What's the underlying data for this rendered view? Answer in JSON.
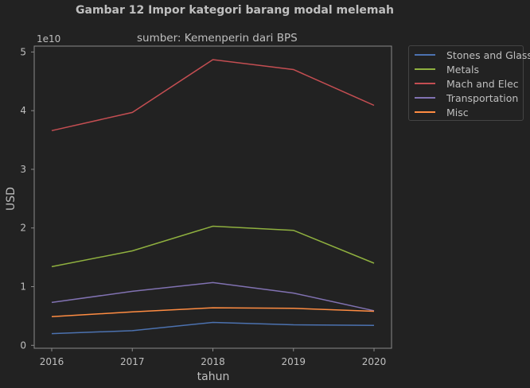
{
  "figure": {
    "suptitle": "Gambar 12 Impor kategori barang modal melemah",
    "title": "sumber: Kemenperin dari BPS"
  },
  "chart_data": {
    "type": "line",
    "title": "sumber: Kemenperin dari BPS",
    "xlabel": "tahun",
    "ylabel": "USD",
    "y_offset_label": "1e10",
    "x": [
      2016,
      2017,
      2018,
      2019,
      2020
    ],
    "x_ticks": [
      "2016",
      "2017",
      "2018",
      "2019",
      "2020"
    ],
    "y_ticks": [
      "0",
      "1",
      "2",
      "3",
      "4",
      "5"
    ],
    "ylim": [
      -0.05,
      5.1
    ],
    "y_scale": 10000000000,
    "grid": false,
    "legend_position": "outside-right-top",
    "series": [
      {
        "name": "Stones and Glass",
        "color": "#4c72b0",
        "values": [
          0.2,
          0.25,
          0.39,
          0.35,
          0.34
        ]
      },
      {
        "name": "Metals",
        "color": "#8fb03f",
        "values": [
          1.34,
          1.61,
          2.03,
          1.96,
          1.4
        ]
      },
      {
        "name": "Mach and Elec",
        "color": "#c44e52",
        "values": [
          3.66,
          3.97,
          4.87,
          4.7,
          4.09
        ]
      },
      {
        "name": "Transportation",
        "color": "#8172b2",
        "values": [
          0.73,
          0.92,
          1.07,
          0.89,
          0.59
        ]
      },
      {
        "name": "Misc",
        "color": "#ff8c42",
        "values": [
          0.49,
          0.57,
          0.64,
          0.63,
          0.58
        ]
      }
    ]
  }
}
